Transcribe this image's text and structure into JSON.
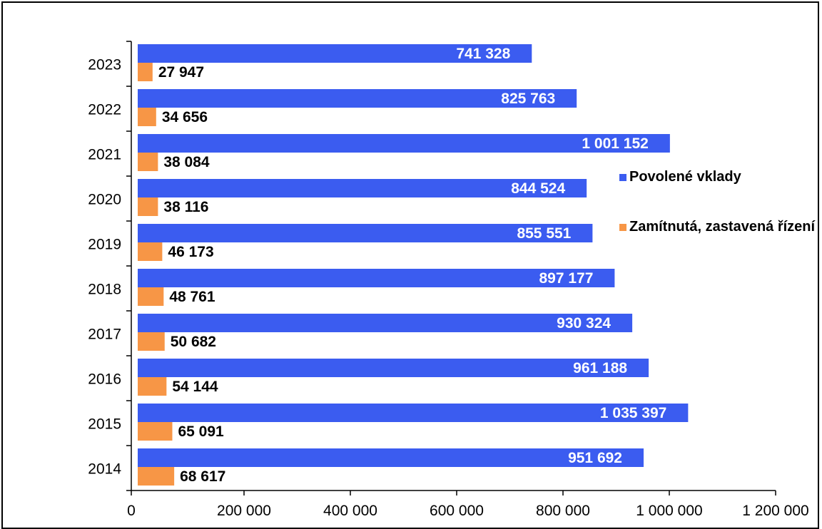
{
  "chart_data": {
    "type": "bar",
    "orientation": "horizontal",
    "categories": [
      "2023",
      "2022",
      "2021",
      "2020",
      "2019",
      "2018",
      "2017",
      "2016",
      "2015",
      "2014"
    ],
    "series": [
      {
        "name": "Povolené vklady",
        "color": "#3b5cf0",
        "values": [
          741328,
          825763,
          1001152,
          844524,
          855551,
          897177,
          930324,
          961188,
          1035397,
          951692
        ],
        "labels": [
          "741 328",
          "825 763",
          "1 001 152",
          "844 524",
          "855 551",
          "897 177",
          "930 324",
          "961 188",
          "1 035 397",
          "951 692"
        ],
        "label_color": "#ffffff",
        "label_position": "inside-end"
      },
      {
        "name": "Zamítnutá, zastavená řízení",
        "color": "#f79646",
        "values": [
          27947,
          34656,
          38084,
          38116,
          46173,
          48761,
          50682,
          54144,
          65091,
          68617
        ],
        "labels": [
          "27 947",
          "34 656",
          "38 084",
          "38 116",
          "46 173",
          "48 761",
          "50 682",
          "54 144",
          "65 091",
          "68 617"
        ],
        "label_color": "#000000",
        "label_position": "outside-end"
      }
    ],
    "xlim": [
      0,
      1200000
    ],
    "xticks": [
      0,
      200000,
      400000,
      600000,
      800000,
      1000000,
      1200000
    ],
    "xtick_labels": [
      "0",
      "200 000",
      "400 000",
      "600 000",
      "800 000",
      "1 000 000",
      "1 200 000"
    ],
    "grid": false,
    "legend_position": "right"
  }
}
